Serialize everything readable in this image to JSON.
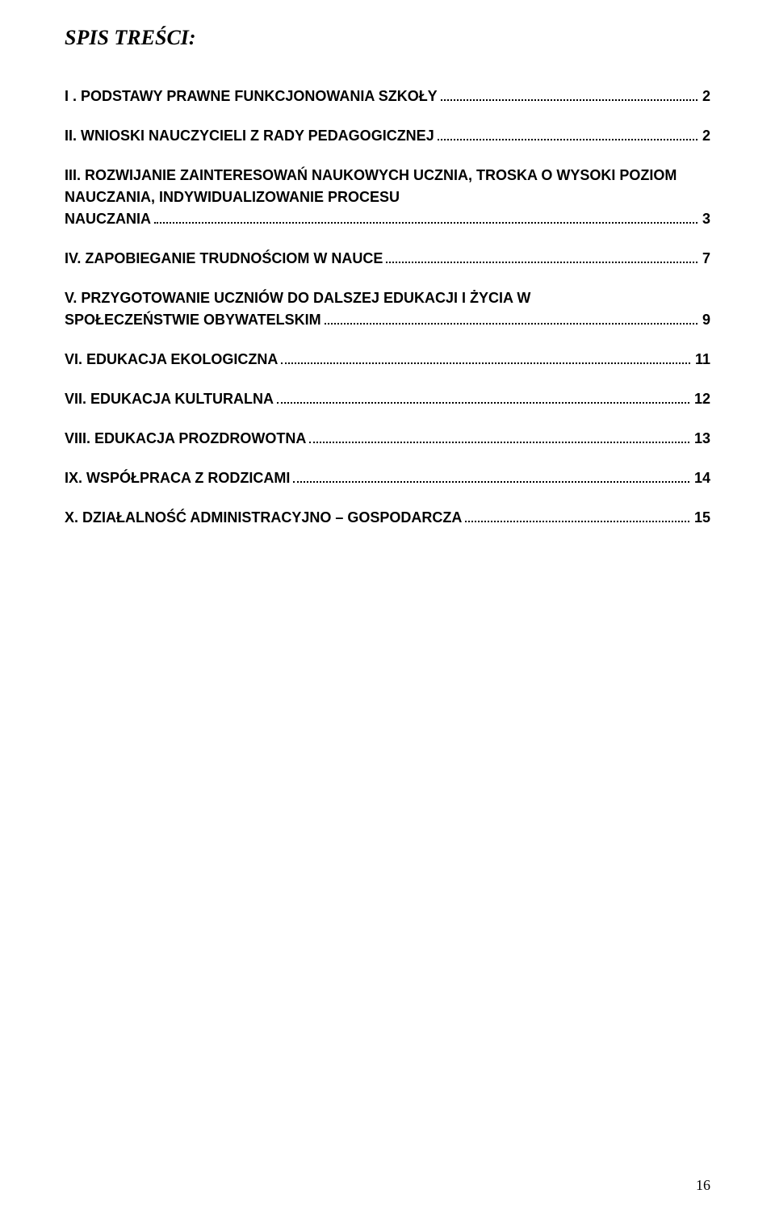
{
  "title": "SPIS TREŚCI:",
  "toc": [
    {
      "label": "I . PODSTAWY PRAWNE FUNKCJONOWANIA SZKOŁY",
      "page": "2",
      "multiline": false,
      "line2": ""
    },
    {
      "label": "II. WNIOSKI NAUCZYCIELI Z RADY PEDAGOGICZNEJ",
      "page": "2",
      "multiline": false,
      "line2": ""
    },
    {
      "label": "III. ROZWIJANIE ZAINTERESOWAŃ NAUKOWYCH UCZNIA, TROSKA O WYSOKI POZIOM NAUCZANIA, INDYWIDUALIZOWANIE PROCESU",
      "page": "3",
      "multiline": true,
      "line2": "NAUCZANIA"
    },
    {
      "label": "IV. ZAPOBIEGANIE TRUDNOŚCIOM W NAUCE",
      "page": "7",
      "multiline": false,
      "line2": ""
    },
    {
      "label": "V. PRZYGOTOWANIE UCZNIÓW DO DALSZEJ EDUKACJI I ŻYCIA W",
      "page": "9",
      "multiline": true,
      "line2": "SPOŁECZEŃSTWIE OBYWATELSKIM"
    },
    {
      "label": "VI. EDUKACJA EKOLOGICZNA",
      "page": "11",
      "multiline": false,
      "line2": ""
    },
    {
      "label": "VII. EDUKACJA KULTURALNA",
      "page": "12",
      "multiline": false,
      "line2": ""
    },
    {
      "label": "VIII. EDUKACJA PROZDROWOTNA",
      "page": "13",
      "multiline": false,
      "line2": ""
    },
    {
      "label": "IX. WSPÓŁPRACA Z RODZICAMI",
      "page": "14",
      "multiline": false,
      "line2": ""
    },
    {
      "label": "X. DZIAŁALNOŚĆ ADMINISTRACYJNO – GOSPODARCZA",
      "page": "15",
      "multiline": false,
      "line2": ""
    }
  ],
  "page_number": "16"
}
